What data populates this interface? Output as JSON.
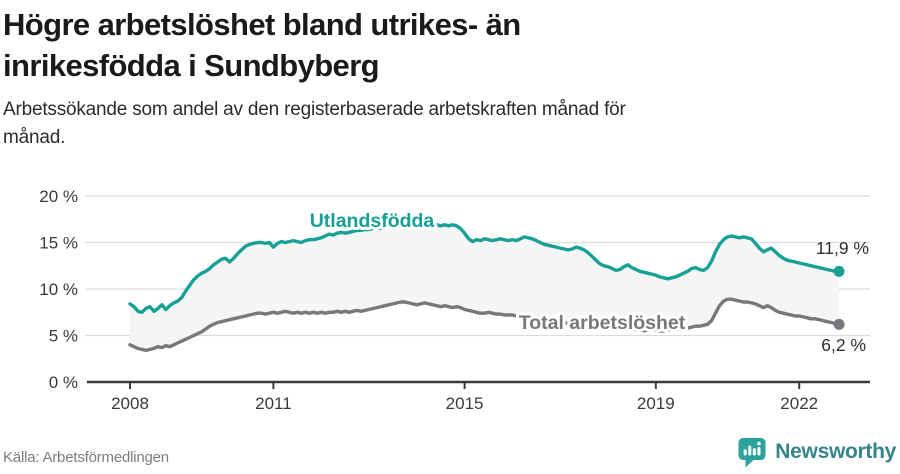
{
  "header": {
    "title_line1": "Högre arbetslöshet bland utrikes- än",
    "title_line2": "inrikesfödda i Sundbyberg",
    "subtitle_line1": "Arbetssökande som andel av den registerbaserade arbetskraften månad för",
    "subtitle_line2": "månad."
  },
  "chart_data": {
    "type": "line",
    "title": "Högre arbetslöshet bland utrikes- än inrikesfödda i Sundbyberg",
    "subtitle": "Arbetssökande som andel av den registerbaserade arbetskraften månad för månad.",
    "unit": "%",
    "frequency": "monthly",
    "x_start": "2008-01",
    "x_end": "2022-11",
    "ylim": [
      0,
      20
    ],
    "grid": "horizontal",
    "fill_between_color": "#f5f5f5",
    "gridline_color": "#dcdcdc",
    "axis_color": "#3a3a3a",
    "yticks": [
      {
        "value": 0,
        "label": "0 %"
      },
      {
        "value": 5,
        "label": "5 %"
      },
      {
        "value": 10,
        "label": "10 %"
      },
      {
        "value": 15,
        "label": "15 %"
      },
      {
        "value": 20,
        "label": "20 %"
      }
    ],
    "xticks": [
      {
        "year": 2008,
        "label": "2008"
      },
      {
        "year": 2011,
        "label": "2011"
      },
      {
        "year": 2015,
        "label": "2015"
      },
      {
        "year": 2019,
        "label": "2019"
      },
      {
        "year": 2022,
        "label": "2022"
      }
    ],
    "series": [
      {
        "name": "Utlandsfödda",
        "color": "#16a096",
        "end_label": "11,9 %",
        "end_value": 11.9,
        "values": [
          8.4,
          8.1,
          7.6,
          7.5,
          7.9,
          8.1,
          7.6,
          7.9,
          8.3,
          7.8,
          8.2,
          8.5,
          8.7,
          9.1,
          9.8,
          10.4,
          11.0,
          11.4,
          11.7,
          11.9,
          12.2,
          12.6,
          12.9,
          13.2,
          13.3,
          12.9,
          13.3,
          13.8,
          14.2,
          14.6,
          14.8,
          14.9,
          15.0,
          15.0,
          14.9,
          15.0,
          14.5,
          14.9,
          15.1,
          15.0,
          15.1,
          15.2,
          15.1,
          15.0,
          15.2,
          15.3,
          15.3,
          15.4,
          15.5,
          15.7,
          15.9,
          15.8,
          16.0,
          16.1,
          16.0,
          16.1,
          16.2,
          16.3,
          16.3,
          16.4,
          16.4,
          16.5,
          16.6,
          16.5,
          16.6,
          16.7,
          16.6,
          16.7,
          16.8,
          16.7,
          16.8,
          16.7,
          16.6,
          16.7,
          16.8,
          16.7,
          16.8,
          16.9,
          16.8,
          16.9,
          16.8,
          16.9,
          16.8,
          16.5,
          16.0,
          15.4,
          15.1,
          15.3,
          15.2,
          15.4,
          15.3,
          15.2,
          15.3,
          15.4,
          15.3,
          15.2,
          15.3,
          15.2,
          15.4,
          15.6,
          15.5,
          15.4,
          15.2,
          15.0,
          14.8,
          14.7,
          14.6,
          14.5,
          14.4,
          14.3,
          14.2,
          14.3,
          14.5,
          14.4,
          14.2,
          13.9,
          13.5,
          13.1,
          12.7,
          12.5,
          12.4,
          12.2,
          12.0,
          12.1,
          12.4,
          12.6,
          12.3,
          12.1,
          11.9,
          11.8,
          11.7,
          11.6,
          11.5,
          11.3,
          11.2,
          11.1,
          11.2,
          11.3,
          11.5,
          11.7,
          11.9,
          12.2,
          12.3,
          12.1,
          12.0,
          12.3,
          13.0,
          14.0,
          14.8,
          15.3,
          15.6,
          15.7,
          15.6,
          15.5,
          15.6,
          15.5,
          15.4,
          14.9,
          14.4,
          14.0,
          14.2,
          14.4,
          14.0,
          13.6,
          13.3,
          13.1,
          13.0,
          12.9,
          12.8,
          12.7,
          12.6,
          12.5,
          12.4,
          12.3,
          12.2,
          12.1,
          12.0,
          11.9,
          11.9
        ]
      },
      {
        "name": "Total arbetslöshet",
        "color": "#77787b",
        "end_label": "6,2 %",
        "end_value": 6.2,
        "values": [
          4.0,
          3.8,
          3.6,
          3.5,
          3.4,
          3.5,
          3.6,
          3.8,
          3.7,
          3.9,
          3.8,
          4.0,
          4.2,
          4.4,
          4.6,
          4.8,
          5.0,
          5.2,
          5.4,
          5.7,
          6.0,
          6.2,
          6.4,
          6.5,
          6.6,
          6.7,
          6.8,
          6.9,
          7.0,
          7.1,
          7.2,
          7.3,
          7.4,
          7.4,
          7.3,
          7.4,
          7.5,
          7.4,
          7.5,
          7.6,
          7.5,
          7.4,
          7.5,
          7.4,
          7.5,
          7.4,
          7.5,
          7.4,
          7.5,
          7.4,
          7.5,
          7.5,
          7.6,
          7.5,
          7.6,
          7.5,
          7.6,
          7.7,
          7.6,
          7.7,
          7.8,
          7.9,
          8.0,
          8.1,
          8.2,
          8.3,
          8.4,
          8.5,
          8.6,
          8.6,
          8.5,
          8.4,
          8.3,
          8.4,
          8.5,
          8.4,
          8.3,
          8.2,
          8.1,
          8.2,
          8.1,
          8.0,
          8.1,
          8.0,
          7.8,
          7.7,
          7.6,
          7.5,
          7.4,
          7.4,
          7.5,
          7.4,
          7.3,
          7.3,
          7.2,
          7.2,
          7.2,
          7.1,
          7.0,
          6.9,
          6.9,
          6.8,
          6.8,
          6.7,
          6.6,
          6.6,
          6.5,
          6.5,
          6.4,
          6.4,
          6.3,
          6.2,
          6.2,
          6.1,
          6.1,
          6.0,
          6.0,
          5.9,
          5.9,
          5.8,
          5.8,
          5.8,
          5.7,
          5.7,
          5.6,
          5.7,
          5.7,
          5.6,
          5.6,
          5.5,
          5.6,
          5.6,
          5.6,
          5.5,
          5.5,
          5.6,
          5.6,
          5.7,
          5.7,
          5.8,
          5.8,
          5.9,
          6.0,
          6.0,
          6.1,
          6.2,
          6.6,
          7.4,
          8.2,
          8.7,
          8.9,
          8.9,
          8.8,
          8.7,
          8.6,
          8.6,
          8.5,
          8.4,
          8.2,
          8.0,
          8.2,
          8.0,
          7.7,
          7.5,
          7.4,
          7.3,
          7.2,
          7.1,
          7.1,
          7.0,
          6.9,
          6.8,
          6.8,
          6.7,
          6.6,
          6.5,
          6.4,
          6.3,
          6.2
        ]
      }
    ]
  },
  "footer": {
    "source": "Källa: Arbetsförmedlingen",
    "brand": "Newsworthy",
    "brand_text_color": "#35858b",
    "brand_icon_color": "#2ba29c"
  }
}
